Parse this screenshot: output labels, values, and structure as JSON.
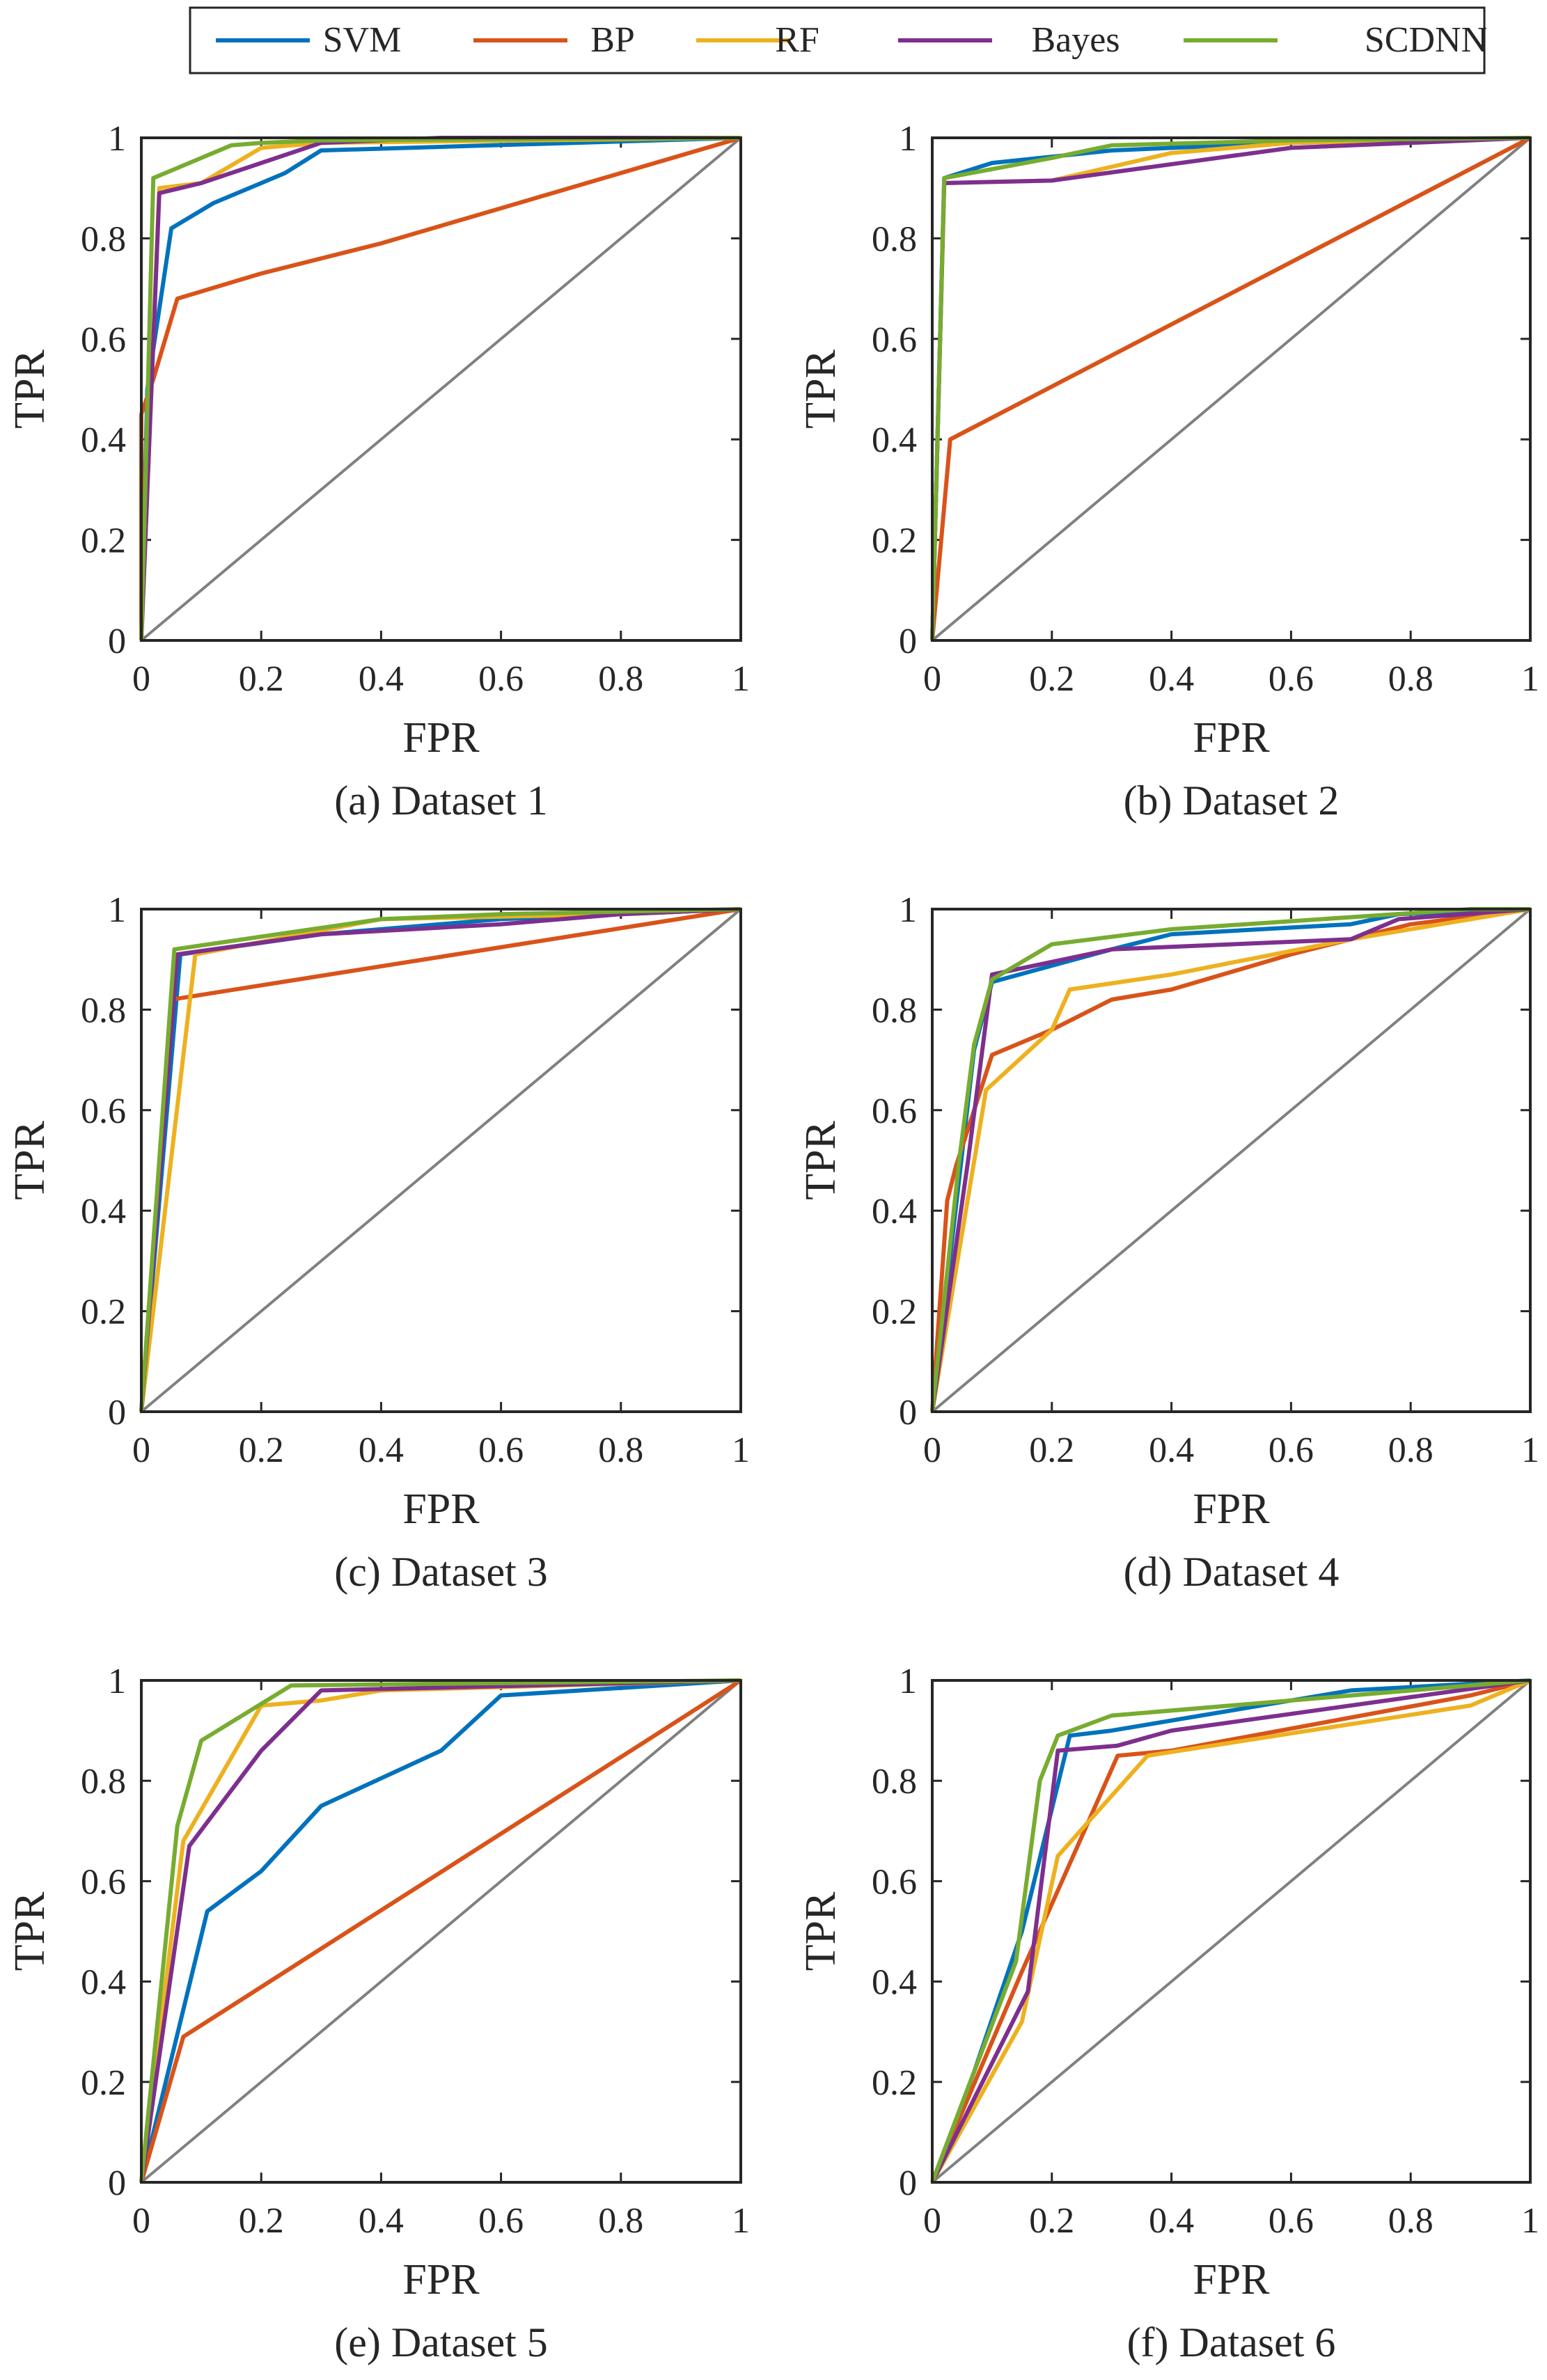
{
  "legend": {
    "entries": [
      {
        "name": "SVM",
        "color": "#0072BD"
      },
      {
        "name": "BP",
        "color": "#D95319"
      },
      {
        "name": "RF",
        "color": "#EDB120"
      },
      {
        "name": "Bayes",
        "color": "#7E2F8E"
      },
      {
        "name": "SCDNN",
        "color": "#77AC30"
      }
    ],
    "placement": "top-center"
  },
  "chart_data": [
    {
      "type": "line",
      "caption": "(a) Dataset 1",
      "xlabel": "FPR",
      "ylabel": "TPR",
      "xlim": [
        0,
        1
      ],
      "ylim": [
        0,
        1
      ],
      "xticks": [
        "0",
        "0.2",
        "0.4",
        "0.6",
        "0.8",
        "1"
      ],
      "yticks": [
        "0",
        "0.2",
        "0.4",
        "0.6",
        "0.8",
        "1"
      ],
      "reference_line": {
        "color": "#808080",
        "points": [
          [
            0,
            0
          ],
          [
            1,
            1
          ]
        ]
      },
      "series": [
        {
          "name": "SVM",
          "points": [
            [
              0,
              0
            ],
            [
              0.01,
              0.5
            ],
            [
              0.05,
              0.82
            ],
            [
              0.12,
              0.87
            ],
            [
              0.2,
              0.91
            ],
            [
              0.24,
              0.93
            ],
            [
              0.3,
              0.975
            ],
            [
              1,
              1
            ]
          ]
        },
        {
          "name": "BP",
          "points": [
            [
              0,
              0
            ],
            [
              0,
              0.45
            ],
            [
              0.02,
              0.52
            ],
            [
              0.06,
              0.68
            ],
            [
              0.2,
              0.73
            ],
            [
              0.4,
              0.79
            ],
            [
              0.6,
              0.86
            ],
            [
              1,
              1
            ]
          ]
        },
        {
          "name": "RF",
          "points": [
            [
              0,
              0
            ],
            [
              0.03,
              0.9
            ],
            [
              0.1,
              0.91
            ],
            [
              0.2,
              0.98
            ],
            [
              0.3,
              0.99
            ],
            [
              1,
              1
            ]
          ]
        },
        {
          "name": "Bayes",
          "points": [
            [
              0,
              0
            ],
            [
              0.03,
              0.89
            ],
            [
              0.1,
              0.91
            ],
            [
              0.2,
              0.95
            ],
            [
              0.3,
              0.99
            ],
            [
              0.5,
              1
            ],
            [
              1,
              1
            ]
          ]
        },
        {
          "name": "SCDNN",
          "points": [
            [
              0,
              0
            ],
            [
              0.02,
              0.92
            ],
            [
              0.1,
              0.96
            ],
            [
              0.15,
              0.985
            ],
            [
              0.2,
              0.99
            ],
            [
              0.3,
              0.995
            ],
            [
              1,
              1
            ]
          ]
        }
      ]
    },
    {
      "type": "line",
      "caption": "(b) Dataset 2",
      "xlabel": "FPR",
      "ylabel": "TPR",
      "xlim": [
        0,
        1
      ],
      "ylim": [
        0,
        1
      ],
      "xticks": [
        "0",
        "0.2",
        "0.4",
        "0.6",
        "0.8",
        "1"
      ],
      "yticks": [
        "0",
        "0.2",
        "0.4",
        "0.6",
        "0.8",
        "1"
      ],
      "reference_line": {
        "color": "#808080",
        "points": [
          [
            0,
            0
          ],
          [
            1,
            1
          ]
        ]
      },
      "series": [
        {
          "name": "SVM",
          "points": [
            [
              0,
              0
            ],
            [
              0.02,
              0.92
            ],
            [
              0.1,
              0.95
            ],
            [
              0.3,
              0.975
            ],
            [
              0.6,
              0.99
            ],
            [
              1,
              1
            ]
          ]
        },
        {
          "name": "BP",
          "points": [
            [
              0,
              0
            ],
            [
              0.03,
              0.4
            ],
            [
              1,
              1
            ]
          ]
        },
        {
          "name": "RF",
          "points": [
            [
              0,
              0
            ],
            [
              0.02,
              0.91
            ],
            [
              0.2,
              0.915
            ],
            [
              0.4,
              0.97
            ],
            [
              0.6,
              0.99
            ],
            [
              1,
              1
            ]
          ]
        },
        {
          "name": "Bayes",
          "points": [
            [
              0,
              0
            ],
            [
              0.02,
              0.91
            ],
            [
              0.2,
              0.915
            ],
            [
              0.6,
              0.98
            ],
            [
              1,
              1
            ]
          ]
        },
        {
          "name": "SCDNN",
          "points": [
            [
              0,
              0
            ],
            [
              0.02,
              0.92
            ],
            [
              0.2,
              0.96
            ],
            [
              0.3,
              0.985
            ],
            [
              0.6,
              0.995
            ],
            [
              1,
              1
            ]
          ]
        }
      ]
    },
    {
      "type": "line",
      "caption": "(c) Dataset 3",
      "xlabel": "FPR",
      "ylabel": "TPR",
      "xlim": [
        0,
        1
      ],
      "ylim": [
        0,
        1
      ],
      "xticks": [
        "0",
        "0.2",
        "0.4",
        "0.6",
        "0.8",
        "1"
      ],
      "yticks": [
        "0",
        "0.2",
        "0.4",
        "0.6",
        "0.8",
        "1"
      ],
      "reference_line": {
        "color": "#808080",
        "points": [
          [
            0,
            0
          ],
          [
            1,
            1
          ]
        ]
      },
      "series": [
        {
          "name": "SVM",
          "points": [
            [
              0,
              0
            ],
            [
              0.065,
              0.91
            ],
            [
              0.3,
              0.95
            ],
            [
              0.6,
              0.98
            ],
            [
              1,
              1
            ]
          ]
        },
        {
          "name": "BP",
          "points": [
            [
              0,
              0
            ],
            [
              0.05,
              0.82
            ],
            [
              1,
              1
            ]
          ]
        },
        {
          "name": "RF",
          "points": [
            [
              0,
              0
            ],
            [
              0.09,
              0.91
            ],
            [
              0.4,
              0.98
            ],
            [
              0.8,
              0.99
            ],
            [
              1,
              1
            ]
          ]
        },
        {
          "name": "Bayes",
          "points": [
            [
              0,
              0
            ],
            [
              0.06,
              0.91
            ],
            [
              0.3,
              0.95
            ],
            [
              0.6,
              0.97
            ],
            [
              0.8,
              0.99
            ],
            [
              1,
              1
            ]
          ]
        },
        {
          "name": "SCDNN",
          "points": [
            [
              0,
              0
            ],
            [
              0.055,
              0.92
            ],
            [
              0.4,
              0.98
            ],
            [
              0.6,
              0.99
            ],
            [
              1,
              1
            ]
          ]
        }
      ]
    },
    {
      "type": "line",
      "caption": "(d) Dataset 4",
      "xlabel": "FPR",
      "ylabel": "TPR",
      "xlim": [
        0,
        1
      ],
      "ylim": [
        0,
        1
      ],
      "xticks": [
        "0",
        "0.2",
        "0.4",
        "0.6",
        "0.8",
        "1"
      ],
      "yticks": [
        "0",
        "0.2",
        "0.4",
        "0.6",
        "0.8",
        "1"
      ],
      "reference_line": {
        "color": "#808080",
        "points": [
          [
            0,
            0
          ],
          [
            1,
            1
          ]
        ]
      },
      "series": [
        {
          "name": "SVM",
          "points": [
            [
              0,
              0
            ],
            [
              0.07,
              0.72
            ],
            [
              0.1,
              0.855
            ],
            [
              0.3,
              0.92
            ],
            [
              0.4,
              0.95
            ],
            [
              0.7,
              0.97
            ],
            [
              0.78,
              0.99
            ],
            [
              1,
              1
            ]
          ]
        },
        {
          "name": "BP",
          "points": [
            [
              0,
              0
            ],
            [
              0.025,
              0.42
            ],
            [
              0.04,
              0.49
            ],
            [
              0.1,
              0.71
            ],
            [
              0.2,
              0.76
            ],
            [
              0.3,
              0.82
            ],
            [
              0.4,
              0.84
            ],
            [
              0.6,
              0.91
            ],
            [
              0.7,
              0.94
            ],
            [
              0.8,
              0.97
            ],
            [
              1,
              1
            ]
          ]
        },
        {
          "name": "RF",
          "points": [
            [
              0,
              0
            ],
            [
              0.09,
              0.64
            ],
            [
              0.2,
              0.76
            ],
            [
              0.23,
              0.84
            ],
            [
              0.4,
              0.87
            ],
            [
              0.7,
              0.94
            ],
            [
              0.85,
              0.97
            ],
            [
              1,
              1
            ]
          ]
        },
        {
          "name": "Bayes",
          "points": [
            [
              0,
              0
            ],
            [
              0.06,
              0.5
            ],
            [
              0.1,
              0.87
            ],
            [
              0.3,
              0.92
            ],
            [
              0.7,
              0.94
            ],
            [
              0.78,
              0.98
            ],
            [
              1,
              1
            ]
          ]
        },
        {
          "name": "SCDNN",
          "points": [
            [
              0,
              0
            ],
            [
              0.045,
              0.5
            ],
            [
              0.07,
              0.73
            ],
            [
              0.1,
              0.86
            ],
            [
              0.2,
              0.93
            ],
            [
              0.4,
              0.96
            ],
            [
              0.9,
              1
            ],
            [
              1,
              1
            ]
          ]
        }
      ]
    },
    {
      "type": "line",
      "caption": "(e) Dataset 5",
      "xlabel": "FPR",
      "ylabel": "TPR",
      "xlim": [
        0,
        1
      ],
      "ylim": [
        0,
        1
      ],
      "xticks": [
        "0",
        "0.2",
        "0.4",
        "0.6",
        "0.8",
        "1"
      ],
      "yticks": [
        "0",
        "0.2",
        "0.4",
        "0.6",
        "0.8",
        "1"
      ],
      "reference_line": {
        "color": "#808080",
        "points": [
          [
            0,
            0
          ],
          [
            1,
            1
          ]
        ]
      },
      "series": [
        {
          "name": "SVM",
          "points": [
            [
              0,
              0
            ],
            [
              0.11,
              0.54
            ],
            [
              0.2,
              0.62
            ],
            [
              0.3,
              0.75
            ],
            [
              0.5,
              0.86
            ],
            [
              0.6,
              0.97
            ],
            [
              1,
              1
            ]
          ]
        },
        {
          "name": "BP",
          "points": [
            [
              0,
              0
            ],
            [
              0.07,
              0.29
            ],
            [
              1,
              1
            ]
          ]
        },
        {
          "name": "RF",
          "points": [
            [
              0,
              0
            ],
            [
              0.07,
              0.68
            ],
            [
              0.2,
              0.95
            ],
            [
              0.3,
              0.96
            ],
            [
              0.4,
              0.98
            ],
            [
              1,
              1
            ]
          ]
        },
        {
          "name": "Bayes",
          "points": [
            [
              0,
              0
            ],
            [
              0.08,
              0.67
            ],
            [
              0.2,
              0.86
            ],
            [
              0.3,
              0.98
            ],
            [
              1,
              1
            ]
          ]
        },
        {
          "name": "SCDNN",
          "points": [
            [
              0,
              0
            ],
            [
              0.06,
              0.71
            ],
            [
              0.1,
              0.88
            ],
            [
              0.25,
              0.99
            ],
            [
              1,
              1
            ]
          ]
        }
      ]
    },
    {
      "type": "line",
      "caption": "(f) Dataset 6",
      "xlabel": "FPR",
      "ylabel": "TPR",
      "xlim": [
        0,
        1
      ],
      "ylim": [
        0,
        1
      ],
      "xticks": [
        "0",
        "0.2",
        "0.4",
        "0.6",
        "0.8",
        "1"
      ],
      "yticks": [
        "0",
        "0.2",
        "0.4",
        "0.6",
        "0.8",
        "1"
      ],
      "reference_line": {
        "color": "#808080",
        "points": [
          [
            0,
            0
          ],
          [
            1,
            1
          ]
        ]
      },
      "series": [
        {
          "name": "SVM",
          "points": [
            [
              0,
              0
            ],
            [
              0.07,
              0.22
            ],
            [
              0.15,
              0.5
            ],
            [
              0.23,
              0.89
            ],
            [
              0.3,
              0.9
            ],
            [
              0.6,
              0.96
            ],
            [
              0.7,
              0.98
            ],
            [
              1,
              1
            ]
          ]
        },
        {
          "name": "BP",
          "points": [
            [
              0,
              0
            ],
            [
              0.15,
              0.42
            ],
            [
              0.31,
              0.85
            ],
            [
              0.4,
              0.86
            ],
            [
              0.9,
              0.97
            ],
            [
              1,
              1
            ]
          ]
        },
        {
          "name": "RF",
          "points": [
            [
              0,
              0
            ],
            [
              0.15,
              0.32
            ],
            [
              0.21,
              0.65
            ],
            [
              0.36,
              0.85
            ],
            [
              0.9,
              0.95
            ],
            [
              1,
              1
            ]
          ]
        },
        {
          "name": "Bayes",
          "points": [
            [
              0,
              0
            ],
            [
              0.16,
              0.38
            ],
            [
              0.21,
              0.86
            ],
            [
              0.31,
              0.87
            ],
            [
              0.4,
              0.9
            ],
            [
              1,
              1
            ]
          ]
        },
        {
          "name": "SCDNN",
          "points": [
            [
              0,
              0
            ],
            [
              0.07,
              0.22
            ],
            [
              0.14,
              0.44
            ],
            [
              0.18,
              0.8
            ],
            [
              0.21,
              0.89
            ],
            [
              0.3,
              0.93
            ],
            [
              1,
              1
            ]
          ]
        }
      ]
    }
  ]
}
